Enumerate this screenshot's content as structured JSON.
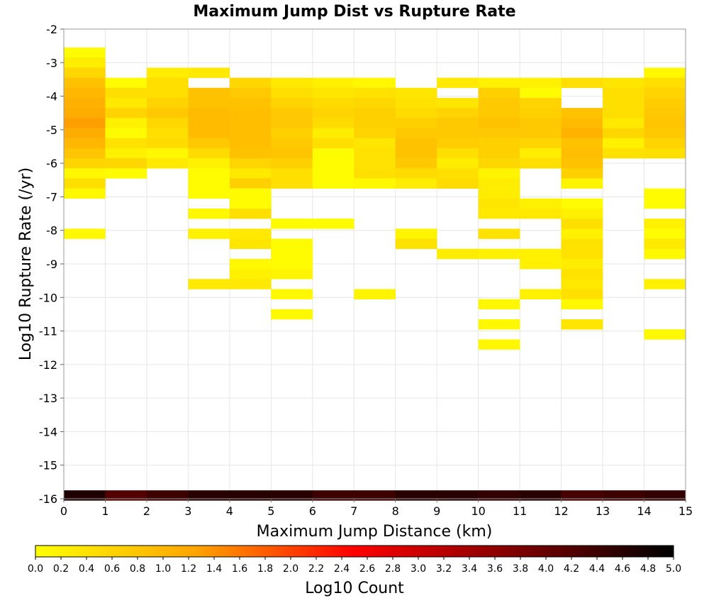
{
  "chart_data": {
    "type": "heatmap",
    "title": "Maximum Jump Dist vs Rupture Rate",
    "xlabel": "Maximum Jump Distance (km)",
    "ylabel": "Log10 Rupture Rate (/yr)",
    "colorbar_label": "Log10 Count",
    "xlim": [
      0,
      15
    ],
    "ylim": [
      -16,
      -2
    ],
    "x_ticks": [
      "0",
      "1",
      "2",
      "3",
      "4",
      "5",
      "6",
      "7",
      "8",
      "9",
      "10",
      "11",
      "12",
      "13",
      "14",
      "15"
    ],
    "y_ticks": [
      "-2",
      "-3",
      "-4",
      "-5",
      "-6",
      "-7",
      "-8",
      "-9",
      "-10",
      "-11",
      "-12",
      "-13",
      "-14",
      "-15",
      "-16"
    ],
    "colorbar_range": [
      0,
      5
    ],
    "colorbar_ticks": [
      "0.0",
      "0.2",
      "0.4",
      "0.6",
      "0.8",
      "1.0",
      "1.2",
      "1.4",
      "1.6",
      "1.8",
      "2.0",
      "2.2",
      "2.4",
      "2.6",
      "2.8",
      "3.0",
      "3.2",
      "3.4",
      "3.6",
      "3.8",
      "4.0",
      "4.2",
      "4.4",
      "4.6",
      "4.8",
      "5.0"
    ],
    "colormap": [
      "#ffff00",
      "#ffa500",
      "#ff0000",
      "#000000"
    ],
    "grid": true,
    "cell_height_log10": 0.3,
    "columns": [
      {
        "x": 0,
        "cells": [
          [
            -2.7,
            0.05
          ],
          [
            -3.0,
            0.25
          ],
          [
            -3.3,
            0.55
          ],
          [
            -3.6,
            0.85
          ],
          [
            -3.9,
            1.0
          ],
          [
            -4.2,
            1.1
          ],
          [
            -4.5,
            1.15
          ],
          [
            -4.8,
            1.3
          ],
          [
            -5.1,
            1.15
          ],
          [
            -5.4,
            1.0
          ],
          [
            -5.7,
            0.8
          ],
          [
            -6.0,
            0.6
          ],
          [
            -6.3,
            0.1
          ],
          [
            -6.6,
            0.45
          ],
          [
            -6.9,
            0.1
          ],
          [
            -8.1,
            0.1
          ],
          [
            -15.9,
            4.7
          ]
        ]
      },
      {
        "x": 1,
        "cells": [
          [
            -3.6,
            0.05
          ],
          [
            -3.9,
            0.45
          ],
          [
            -4.2,
            0.3
          ],
          [
            -4.5,
            0.6
          ],
          [
            -4.8,
            0.2
          ],
          [
            -5.1,
            0.05
          ],
          [
            -5.4,
            0.4
          ],
          [
            -5.7,
            0.2
          ],
          [
            -6.0,
            0.55
          ],
          [
            -6.3,
            0.05
          ],
          [
            -15.9,
            4.2
          ]
        ]
      },
      {
        "x": 2,
        "cells": [
          [
            -3.3,
            0.25
          ],
          [
            -3.6,
            0.45
          ],
          [
            -3.9,
            0.45
          ],
          [
            -4.2,
            0.6
          ],
          [
            -4.5,
            0.75
          ],
          [
            -4.8,
            0.55
          ],
          [
            -5.1,
            0.45
          ],
          [
            -5.4,
            0.5
          ],
          [
            -5.7,
            0.1
          ],
          [
            -6.0,
            0.3
          ],
          [
            -15.9,
            4.4
          ]
        ]
      },
      {
        "x": 3,
        "cells": [
          [
            -3.3,
            0.3
          ],
          [
            -3.9,
            0.85
          ],
          [
            -4.2,
            0.85
          ],
          [
            -4.5,
            0.95
          ],
          [
            -4.8,
            0.95
          ],
          [
            -5.1,
            0.95
          ],
          [
            -5.4,
            0.75
          ],
          [
            -5.7,
            0.5
          ],
          [
            -6.0,
            0.2
          ],
          [
            -6.3,
            0.05
          ],
          [
            -6.6,
            0.05
          ],
          [
            -6.9,
            0.05
          ],
          [
            -7.5,
            0.1
          ],
          [
            -8.1,
            0.2
          ],
          [
            -9.6,
            0.3
          ],
          [
            -15.9,
            4.6
          ]
        ]
      },
      {
        "x": 4,
        "cells": [
          [
            -3.6,
            0.55
          ],
          [
            -3.9,
            0.75
          ],
          [
            -4.2,
            0.85
          ],
          [
            -4.5,
            0.9
          ],
          [
            -4.8,
            0.9
          ],
          [
            -5.1,
            0.9
          ],
          [
            -5.4,
            0.9
          ],
          [
            -5.7,
            0.85
          ],
          [
            -6.0,
            0.6
          ],
          [
            -6.3,
            0.3
          ],
          [
            -6.6,
            0.65
          ],
          [
            -6.9,
            0.05
          ],
          [
            -7.2,
            0.05
          ],
          [
            -7.5,
            0.45
          ],
          [
            -8.1,
            0.3
          ],
          [
            -8.4,
            0.35
          ],
          [
            -9.0,
            0.1
          ],
          [
            -9.3,
            0.2
          ],
          [
            -9.6,
            0.3
          ],
          [
            -15.9,
            4.6
          ]
        ]
      },
      {
        "x": 5,
        "cells": [
          [
            -3.6,
            0.3
          ],
          [
            -3.9,
            0.45
          ],
          [
            -4.2,
            0.6
          ],
          [
            -4.5,
            0.75
          ],
          [
            -4.8,
            0.75
          ],
          [
            -5.1,
            0.65
          ],
          [
            -5.4,
            0.75
          ],
          [
            -5.7,
            0.8
          ],
          [
            -6.0,
            0.65
          ],
          [
            -6.3,
            0.45
          ],
          [
            -6.6,
            0.45
          ],
          [
            -7.8,
            0.05
          ],
          [
            -8.4,
            0.05
          ],
          [
            -8.7,
            0.05
          ],
          [
            -9.0,
            0.05
          ],
          [
            -9.3,
            0.15
          ],
          [
            -9.9,
            0.1
          ],
          [
            -10.5,
            0.1
          ],
          [
            -15.9,
            4.6
          ]
        ]
      },
      {
        "x": 6,
        "cells": [
          [
            -3.6,
            0.2
          ],
          [
            -3.9,
            0.35
          ],
          [
            -4.2,
            0.5
          ],
          [
            -4.5,
            0.6
          ],
          [
            -4.8,
            0.5
          ],
          [
            -5.1,
            0.25
          ],
          [
            -5.4,
            0.45
          ],
          [
            -5.7,
            0.05
          ],
          [
            -6.0,
            0.05
          ],
          [
            -6.3,
            0.05
          ],
          [
            -6.6,
            0.05
          ],
          [
            -7.8,
            0.05
          ],
          [
            -15.9,
            4.4
          ]
        ]
      },
      {
        "x": 7,
        "cells": [
          [
            -3.6,
            0.1
          ],
          [
            -3.9,
            0.4
          ],
          [
            -4.2,
            0.55
          ],
          [
            -4.5,
            0.65
          ],
          [
            -4.8,
            0.65
          ],
          [
            -5.1,
            0.6
          ],
          [
            -5.4,
            0.35
          ],
          [
            -5.7,
            0.4
          ],
          [
            -6.0,
            0.4
          ],
          [
            -6.3,
            0.45
          ],
          [
            -6.6,
            0.1
          ],
          [
            -9.9,
            0.15
          ],
          [
            -15.9,
            4.4
          ]
        ]
      },
      {
        "x": 8,
        "cells": [
          [
            -3.9,
            0.35
          ],
          [
            -4.2,
            0.4
          ],
          [
            -4.5,
            0.5
          ],
          [
            -4.8,
            0.65
          ],
          [
            -5.1,
            0.75
          ],
          [
            -5.4,
            0.85
          ],
          [
            -5.7,
            0.85
          ],
          [
            -6.0,
            0.75
          ],
          [
            -6.3,
            0.5
          ],
          [
            -6.6,
            0.25
          ],
          [
            -8.1,
            0.15
          ],
          [
            -8.4,
            0.4
          ],
          [
            -15.9,
            4.6
          ]
        ]
      },
      {
        "x": 9,
        "cells": [
          [
            -3.6,
            0.3
          ],
          [
            -4.2,
            0.35
          ],
          [
            -4.5,
            0.6
          ],
          [
            -4.8,
            0.75
          ],
          [
            -5.1,
            0.75
          ],
          [
            -5.4,
            0.7
          ],
          [
            -5.7,
            0.45
          ],
          [
            -6.0,
            0.25
          ],
          [
            -6.3,
            0.45
          ],
          [
            -6.6,
            0.5
          ],
          [
            -8.7,
            0.25
          ],
          [
            -15.9,
            4.6
          ]
        ]
      },
      {
        "x": 10,
        "cells": [
          [
            -3.6,
            0.2
          ],
          [
            -3.9,
            0.65
          ],
          [
            -4.2,
            0.75
          ],
          [
            -4.5,
            0.75
          ],
          [
            -4.8,
            0.85
          ],
          [
            -5.1,
            0.75
          ],
          [
            -5.4,
            0.65
          ],
          [
            -5.7,
            0.65
          ],
          [
            -6.0,
            0.55
          ],
          [
            -6.3,
            0.15
          ],
          [
            -6.6,
            0.25
          ],
          [
            -6.9,
            0.25
          ],
          [
            -7.2,
            0.35
          ],
          [
            -7.5,
            0.3
          ],
          [
            -8.1,
            0.4
          ],
          [
            -8.7,
            0.2
          ],
          [
            -10.2,
            0.1
          ],
          [
            -10.8,
            0.1
          ],
          [
            -11.4,
            0.1
          ],
          [
            -15.9,
            4.5
          ]
        ]
      },
      {
        "x": 11,
        "cells": [
          [
            -3.6,
            0.2
          ],
          [
            -3.9,
            0.05
          ],
          [
            -4.2,
            0.6
          ],
          [
            -4.5,
            0.65
          ],
          [
            -4.8,
            0.75
          ],
          [
            -5.1,
            0.75
          ],
          [
            -5.4,
            0.6
          ],
          [
            -5.7,
            0.25
          ],
          [
            -6.0,
            0.45
          ],
          [
            -7.2,
            0.2
          ],
          [
            -7.5,
            0.3
          ],
          [
            -8.7,
            0.2
          ],
          [
            -9.0,
            0.2
          ],
          [
            -9.9,
            0.2
          ],
          [
            -15.9,
            4.6
          ]
        ]
      },
      {
        "x": 12,
        "cells": [
          [
            -3.6,
            0.45
          ],
          [
            -4.5,
            0.85
          ],
          [
            -4.8,
            0.95
          ],
          [
            -5.1,
            1.05
          ],
          [
            -5.4,
            0.85
          ],
          [
            -5.7,
            0.9
          ],
          [
            -6.0,
            0.85
          ],
          [
            -6.3,
            0.65
          ],
          [
            -6.6,
            0.15
          ],
          [
            -7.2,
            0.05
          ],
          [
            -7.5,
            0.2
          ],
          [
            -7.8,
            0.45
          ],
          [
            -8.1,
            0.2
          ],
          [
            -8.4,
            0.4
          ],
          [
            -8.7,
            0.4
          ],
          [
            -9.0,
            0.25
          ],
          [
            -9.3,
            0.4
          ],
          [
            -9.6,
            0.3
          ],
          [
            -9.9,
            0.45
          ],
          [
            -10.2,
            0.1
          ],
          [
            -10.8,
            0.35
          ],
          [
            -15.9,
            4.3
          ]
        ]
      },
      {
        "x": 13,
        "cells": [
          [
            -3.6,
            0.35
          ],
          [
            -3.9,
            0.45
          ],
          [
            -4.2,
            0.45
          ],
          [
            -4.5,
            0.45
          ],
          [
            -4.8,
            0.3
          ],
          [
            -5.1,
            0.55
          ],
          [
            -5.4,
            0.2
          ],
          [
            -5.7,
            0.4
          ],
          [
            -15.9,
            4.4
          ]
        ]
      },
      {
        "x": 14,
        "cells": [
          [
            -3.3,
            0.1
          ],
          [
            -3.6,
            0.45
          ],
          [
            -3.9,
            0.6
          ],
          [
            -4.2,
            0.7
          ],
          [
            -4.5,
            0.75
          ],
          [
            -4.8,
            0.8
          ],
          [
            -5.1,
            0.75
          ],
          [
            -5.4,
            0.6
          ],
          [
            -5.7,
            0.45
          ],
          [
            -6.9,
            0.05
          ],
          [
            -7.2,
            0.05
          ],
          [
            -7.8,
            0.2
          ],
          [
            -8.1,
            0.05
          ],
          [
            -8.4,
            0.3
          ],
          [
            -8.7,
            0.1
          ],
          [
            -9.6,
            0.2
          ],
          [
            -11.1,
            0.1
          ],
          [
            -15.9,
            4.5
          ]
        ]
      }
    ]
  }
}
